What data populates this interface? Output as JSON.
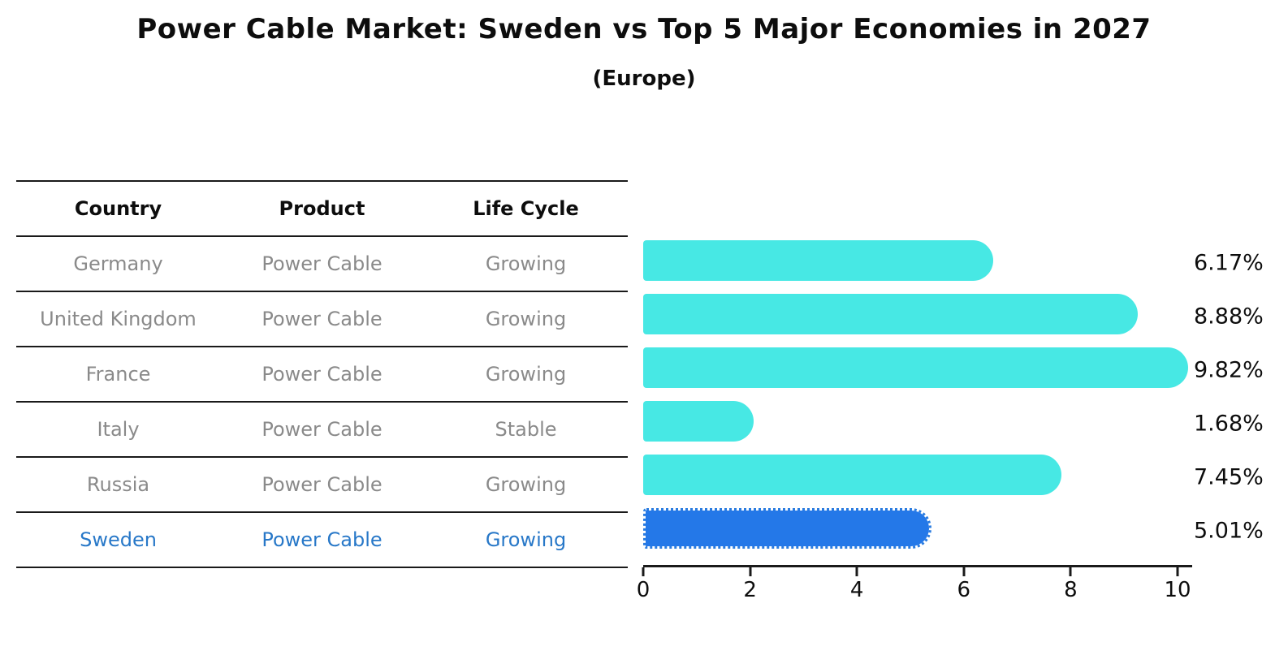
{
  "chart_data": {
    "type": "bar",
    "orientation": "horizontal",
    "title": "Power Cable Market: Sweden vs Top 5 Major Economies in 2027",
    "subtitle": "(Europe)",
    "table_headers": [
      "Country",
      "Product",
      "Life Cycle"
    ],
    "rows": [
      {
        "country": "Germany",
        "product": "Power Cable",
        "life_cycle": "Growing",
        "value": 6.17,
        "label": "6.17%",
        "highlighted": false
      },
      {
        "country": "United Kingdom",
        "product": "Power Cable",
        "life_cycle": "Growing",
        "value": 8.88,
        "label": "8.88%",
        "highlighted": false
      },
      {
        "country": "France",
        "product": "Power Cable",
        "life_cycle": "Growing",
        "value": 9.82,
        "label": "9.82%",
        "highlighted": false
      },
      {
        "country": "Italy",
        "product": "Power Cable",
        "life_cycle": "Stable",
        "value": 1.68,
        "label": "1.68%",
        "highlighted": false
      },
      {
        "country": "Russia",
        "product": "Power Cable",
        "life_cycle": "Growing",
        "value": 7.45,
        "label": "7.45%",
        "highlighted": false
      },
      {
        "country": "Sweden",
        "product": "Power Cable",
        "life_cycle": "Growing",
        "value": 5.01,
        "label": "5.01%",
        "highlighted": true
      }
    ],
    "categories": [
      "Germany",
      "United Kingdom",
      "France",
      "Italy",
      "Russia",
      "Sweden"
    ],
    "values": [
      6.17,
      8.88,
      9.82,
      1.68,
      7.45,
      5.01
    ],
    "value_labels": [
      "6.17%",
      "8.88%",
      "9.82%",
      "1.68%",
      "7.45%",
      "5.01%"
    ],
    "xlabel": "",
    "ylabel": "",
    "xlim": [
      0,
      10
    ],
    "x_ticks": [
      "0",
      "2",
      "4",
      "6",
      "8",
      "10"
    ],
    "grid": "off",
    "legend": "none",
    "colors": {
      "bar": "#47e8e4",
      "highlight_bar": "#2478e8",
      "highlight_text": "#2878c8",
      "table_text": "#8a8a8a",
      "heading_text": "#0d0d0d"
    }
  }
}
